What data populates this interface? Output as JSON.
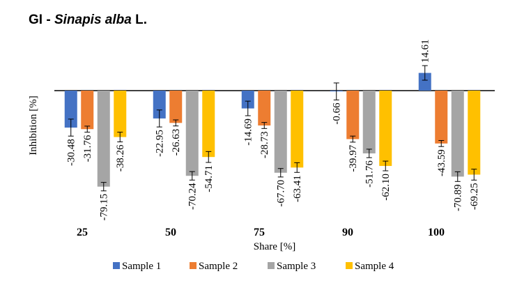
{
  "chart_data": {
    "type": "bar",
    "title": {
      "prefix": "GI - ",
      "species": "Sinapis alba",
      "suffix": " L."
    },
    "xlabel": "Share [%]",
    "ylabel": "Inhibition [%]",
    "categories": [
      "25",
      "50",
      "75",
      "90",
      "100"
    ],
    "ylim": [
      -95,
      40
    ],
    "series": [
      {
        "name": "Sample 1",
        "color": "#4472C4",
        "values": [
          -30.48,
          -22.95,
          -14.69,
          -0.66,
          14.61
        ],
        "errors": [
          7,
          7,
          6,
          7,
          6
        ]
      },
      {
        "name": "Sample 2",
        "color": "#ED7D31",
        "values": [
          -31.76,
          -26.63,
          -28.73,
          -39.97,
          -43.59
        ],
        "errors": [
          2.5,
          2.5,
          2.5,
          2.5,
          2.5
        ]
      },
      {
        "name": "Sample 3",
        "color": "#A5A5A5",
        "values": [
          -79.15,
          -70.24,
          -67.7,
          -51.76,
          -70.89
        ],
        "errors": [
          3.5,
          3.5,
          3.5,
          3.5,
          4
        ]
      },
      {
        "name": "Sample 4",
        "color": "#FFC000",
        "values": [
          -38.26,
          -54.71,
          -63.41,
          -62.1,
          -69.25
        ],
        "errors": [
          4,
          4.5,
          4,
          4,
          4.5
        ]
      }
    ],
    "labels": [
      [
        "-30.48",
        "-22.95",
        "-14.69",
        "-0.66",
        "14.61"
      ],
      [
        "-31.76",
        "-26.63",
        "-28.73",
        "-39.97",
        "-43.59"
      ],
      [
        "-79.15",
        "-70.24",
        "-67.70",
        "-51.76",
        "-70.89"
      ],
      [
        "-38.26",
        "-54.71",
        "-63.41",
        "-62.10",
        "-69.25"
      ]
    ],
    "legend_position": "bottom",
    "grid": false
  }
}
